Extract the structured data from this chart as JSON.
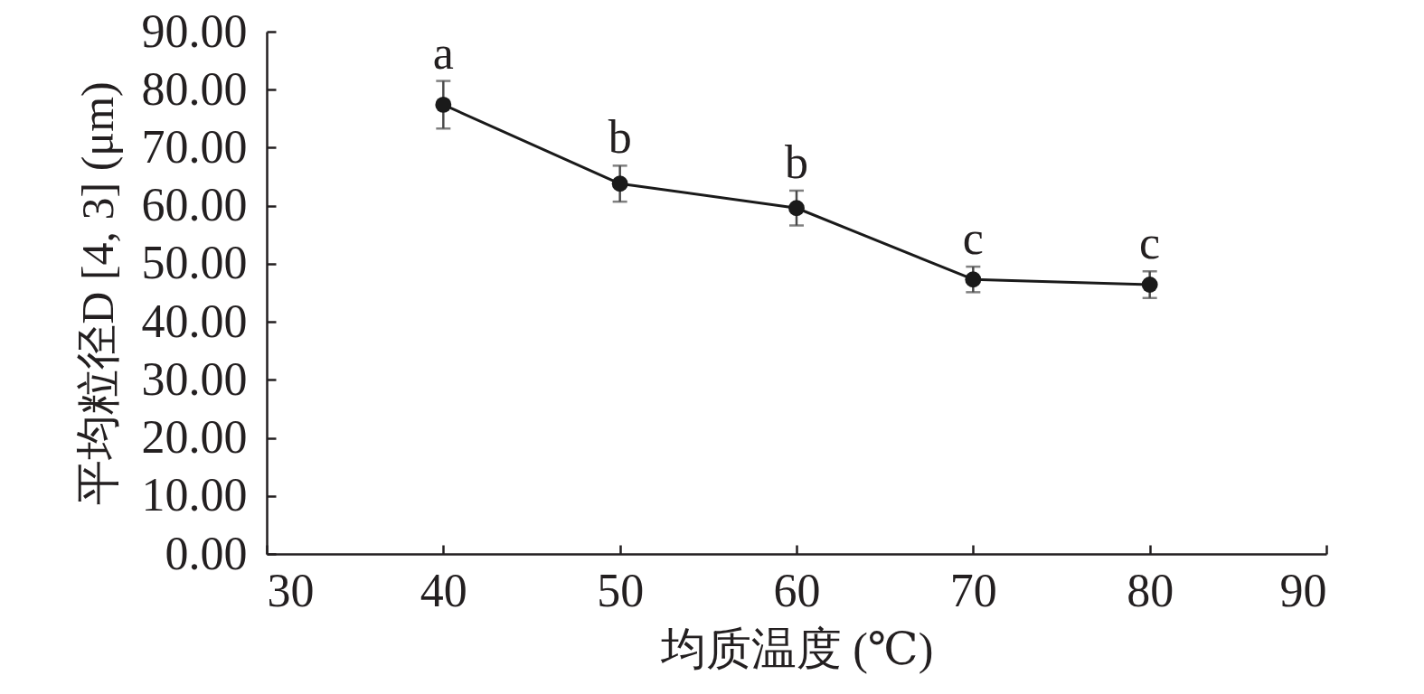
{
  "chart_data": {
    "type": "line",
    "xlabel": "均质温度 (℃)",
    "ylabel": "平均粒径D [4, 3] (μm)",
    "x": [
      40,
      50,
      60,
      70,
      80
    ],
    "series": [
      {
        "color": "#1a1a1a",
        "values": [
          77.4,
          63.8,
          59.6,
          47.3,
          46.4
        ],
        "errors": [
          4.1,
          3.1,
          3.0,
          2.2,
          2.3
        ]
      }
    ],
    "xlim": [
      30,
      90
    ],
    "xticks": [
      30,
      40,
      50,
      60,
      70,
      80,
      90
    ],
    "ylim": [
      0,
      90
    ],
    "yticks": [
      {
        "value": 0,
        "label": "0.00"
      },
      {
        "value": 10,
        "label": "10.00"
      },
      {
        "value": 20,
        "label": "20.00"
      },
      {
        "value": 30,
        "label": "30.00"
      },
      {
        "value": 40,
        "label": "40.00"
      },
      {
        "value": 50,
        "label": "50.00"
      },
      {
        "value": 60,
        "label": "60.00"
      },
      {
        "value": 70,
        "label": "70.00"
      },
      {
        "value": 80,
        "label": "80.00"
      },
      {
        "value": 90,
        "label": "90.00"
      }
    ],
    "marker": "circle",
    "line_style": "solid",
    "annotations": [
      {
        "text": "a",
        "x": 40,
        "y": 77.4
      },
      {
        "text": "b",
        "x": 50,
        "y": 63.8
      },
      {
        "text": "b",
        "x": 60,
        "y": 59.6
      },
      {
        "text": "c",
        "x": 70,
        "y": 47.3
      },
      {
        "text": "c",
        "x": 80,
        "y": 46.4
      }
    ]
  }
}
